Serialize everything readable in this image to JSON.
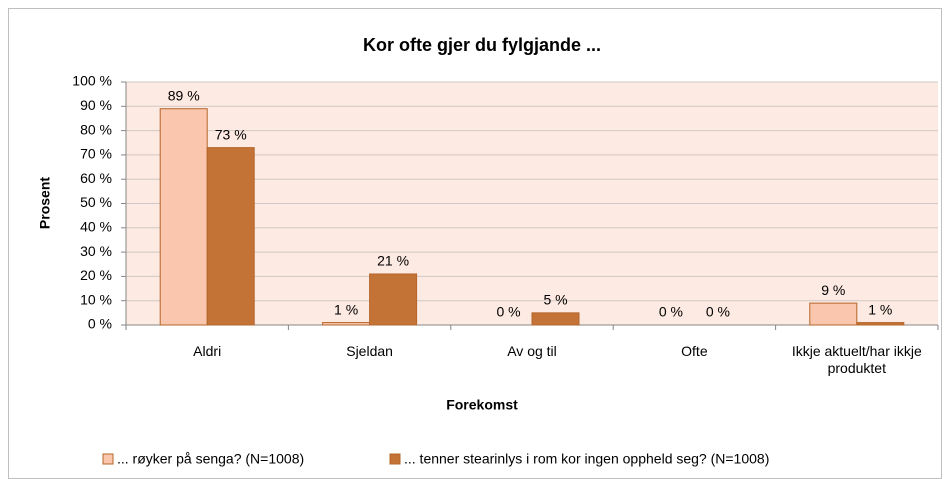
{
  "chart_data": {
    "type": "bar",
    "title": "Kor ofte gjer du fylgjande ...",
    "x_label": "Forekomst",
    "y_label": "Prosent",
    "categories": [
      "Aldri",
      "Sjeldan",
      "Av og til",
      "Ofte",
      "Ikkje aktuelt/har ikkje produktet"
    ],
    "series": [
      {
        "name": "... røyker på senga? (N=1008)",
        "color": "#fac7ae",
        "values": [
          89,
          1,
          0,
          0,
          9
        ],
        "value_labels": [
          "89 %",
          "1 %",
          "0 %",
          "0 %",
          "9 %"
        ]
      },
      {
        "name": "... tenner stearinlys i rom kor ingen oppheld seg? (N=1008)",
        "color": "#c27335",
        "values": [
          73,
          21,
          5,
          0,
          1
        ],
        "value_labels": [
          "73 %",
          "21 %",
          "5 %",
          "0 %",
          "1 %"
        ]
      }
    ],
    "ylim": [
      0,
      100
    ],
    "yticks": [
      {
        "value": 0,
        "label": "0 %"
      },
      {
        "value": 10,
        "label": "10 %"
      },
      {
        "value": 20,
        "label": "20 %"
      },
      {
        "value": 30,
        "label": "30 %"
      },
      {
        "value": 40,
        "label": "40 %"
      },
      {
        "value": 50,
        "label": "50 %"
      },
      {
        "value": 60,
        "label": "60 %"
      },
      {
        "value": 70,
        "label": "70 %"
      },
      {
        "value": 80,
        "label": "80 %"
      },
      {
        "value": 90,
        "label": "90 %"
      },
      {
        "value": 100,
        "label": "100 %"
      }
    ],
    "grid": true,
    "legend": "bottom"
  }
}
